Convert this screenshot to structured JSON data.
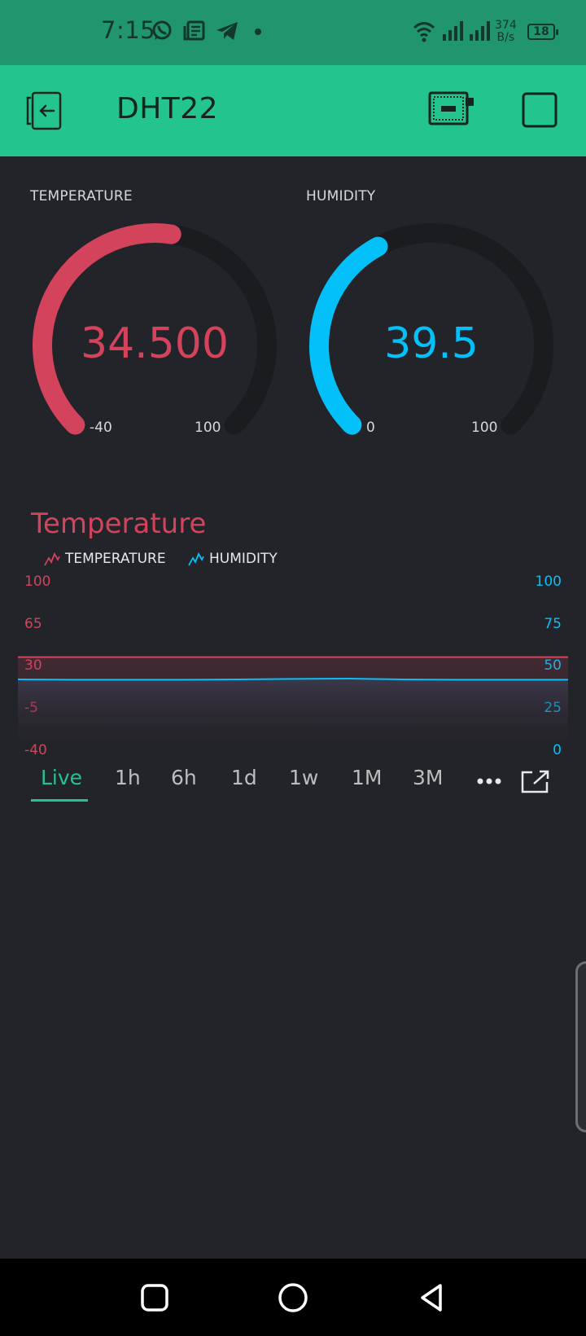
{
  "status_bar": {
    "time": "7:15",
    "net_speed_value": "374",
    "net_speed_unit": "B/s",
    "battery": "18",
    "icons": [
      "whatsapp-icon",
      "news-icon",
      "telegram-icon",
      "dot-icon",
      "wifi-icon",
      "signal-icon",
      "signal-icon",
      "battery-icon"
    ]
  },
  "header": {
    "title": "DHT22",
    "back_icon": "exit-icon",
    "device_icon": "device-board-icon",
    "square_icon": "square-icon"
  },
  "gauges": [
    {
      "label": "TEMPERATURE",
      "value": "34.500",
      "min": "-40",
      "max": "100",
      "level": 0.532,
      "color": "#d3435c"
    },
    {
      "label": "HUMIDITY",
      "value": "39.5",
      "min": "0",
      "max": "100",
      "level": 0.395,
      "color": "#04c0f8"
    }
  ],
  "chart": {
    "title": "Temperature",
    "legend": [
      "TEMPERATURE",
      "HUMIDITY"
    ],
    "left_axis": [
      "100",
      "65",
      "30",
      "-5",
      "-40"
    ],
    "right_axis": [
      "100",
      "75",
      "50",
      "25",
      "0"
    ]
  },
  "chart_data": {
    "type": "line",
    "title": "Temperature",
    "series": [
      {
        "name": "TEMPERATURE",
        "axis": "left",
        "color": "#d3435c",
        "values": [
          34.5,
          34.5,
          34.5,
          34.5,
          34.5,
          34.5,
          34.5,
          34.5,
          34.5,
          34.5,
          34.5
        ]
      },
      {
        "name": "HUMIDITY",
        "axis": "right",
        "color": "#04c0f8",
        "values": [
          39.5,
          39.3,
          39.3,
          39.3,
          39.5,
          39.8,
          40.0,
          39.5,
          39.3,
          39.3,
          39.3
        ]
      }
    ],
    "left_ylim": [
      -40,
      100
    ],
    "right_ylim": [
      0,
      100
    ],
    "grid": false,
    "legend_position": "top-left"
  },
  "time_ranges": [
    "Live",
    "1h",
    "6h",
    "1d",
    "1w",
    "1M",
    "3M"
  ],
  "active_range": "Live",
  "nav": [
    "recents-button",
    "home-button",
    "back-button"
  ],
  "colors": {
    "accent": "#23c48e",
    "status_bar": "#21956d",
    "temperature": "#d3435c",
    "humidity": "#04c0f8",
    "background": "#22242a"
  }
}
